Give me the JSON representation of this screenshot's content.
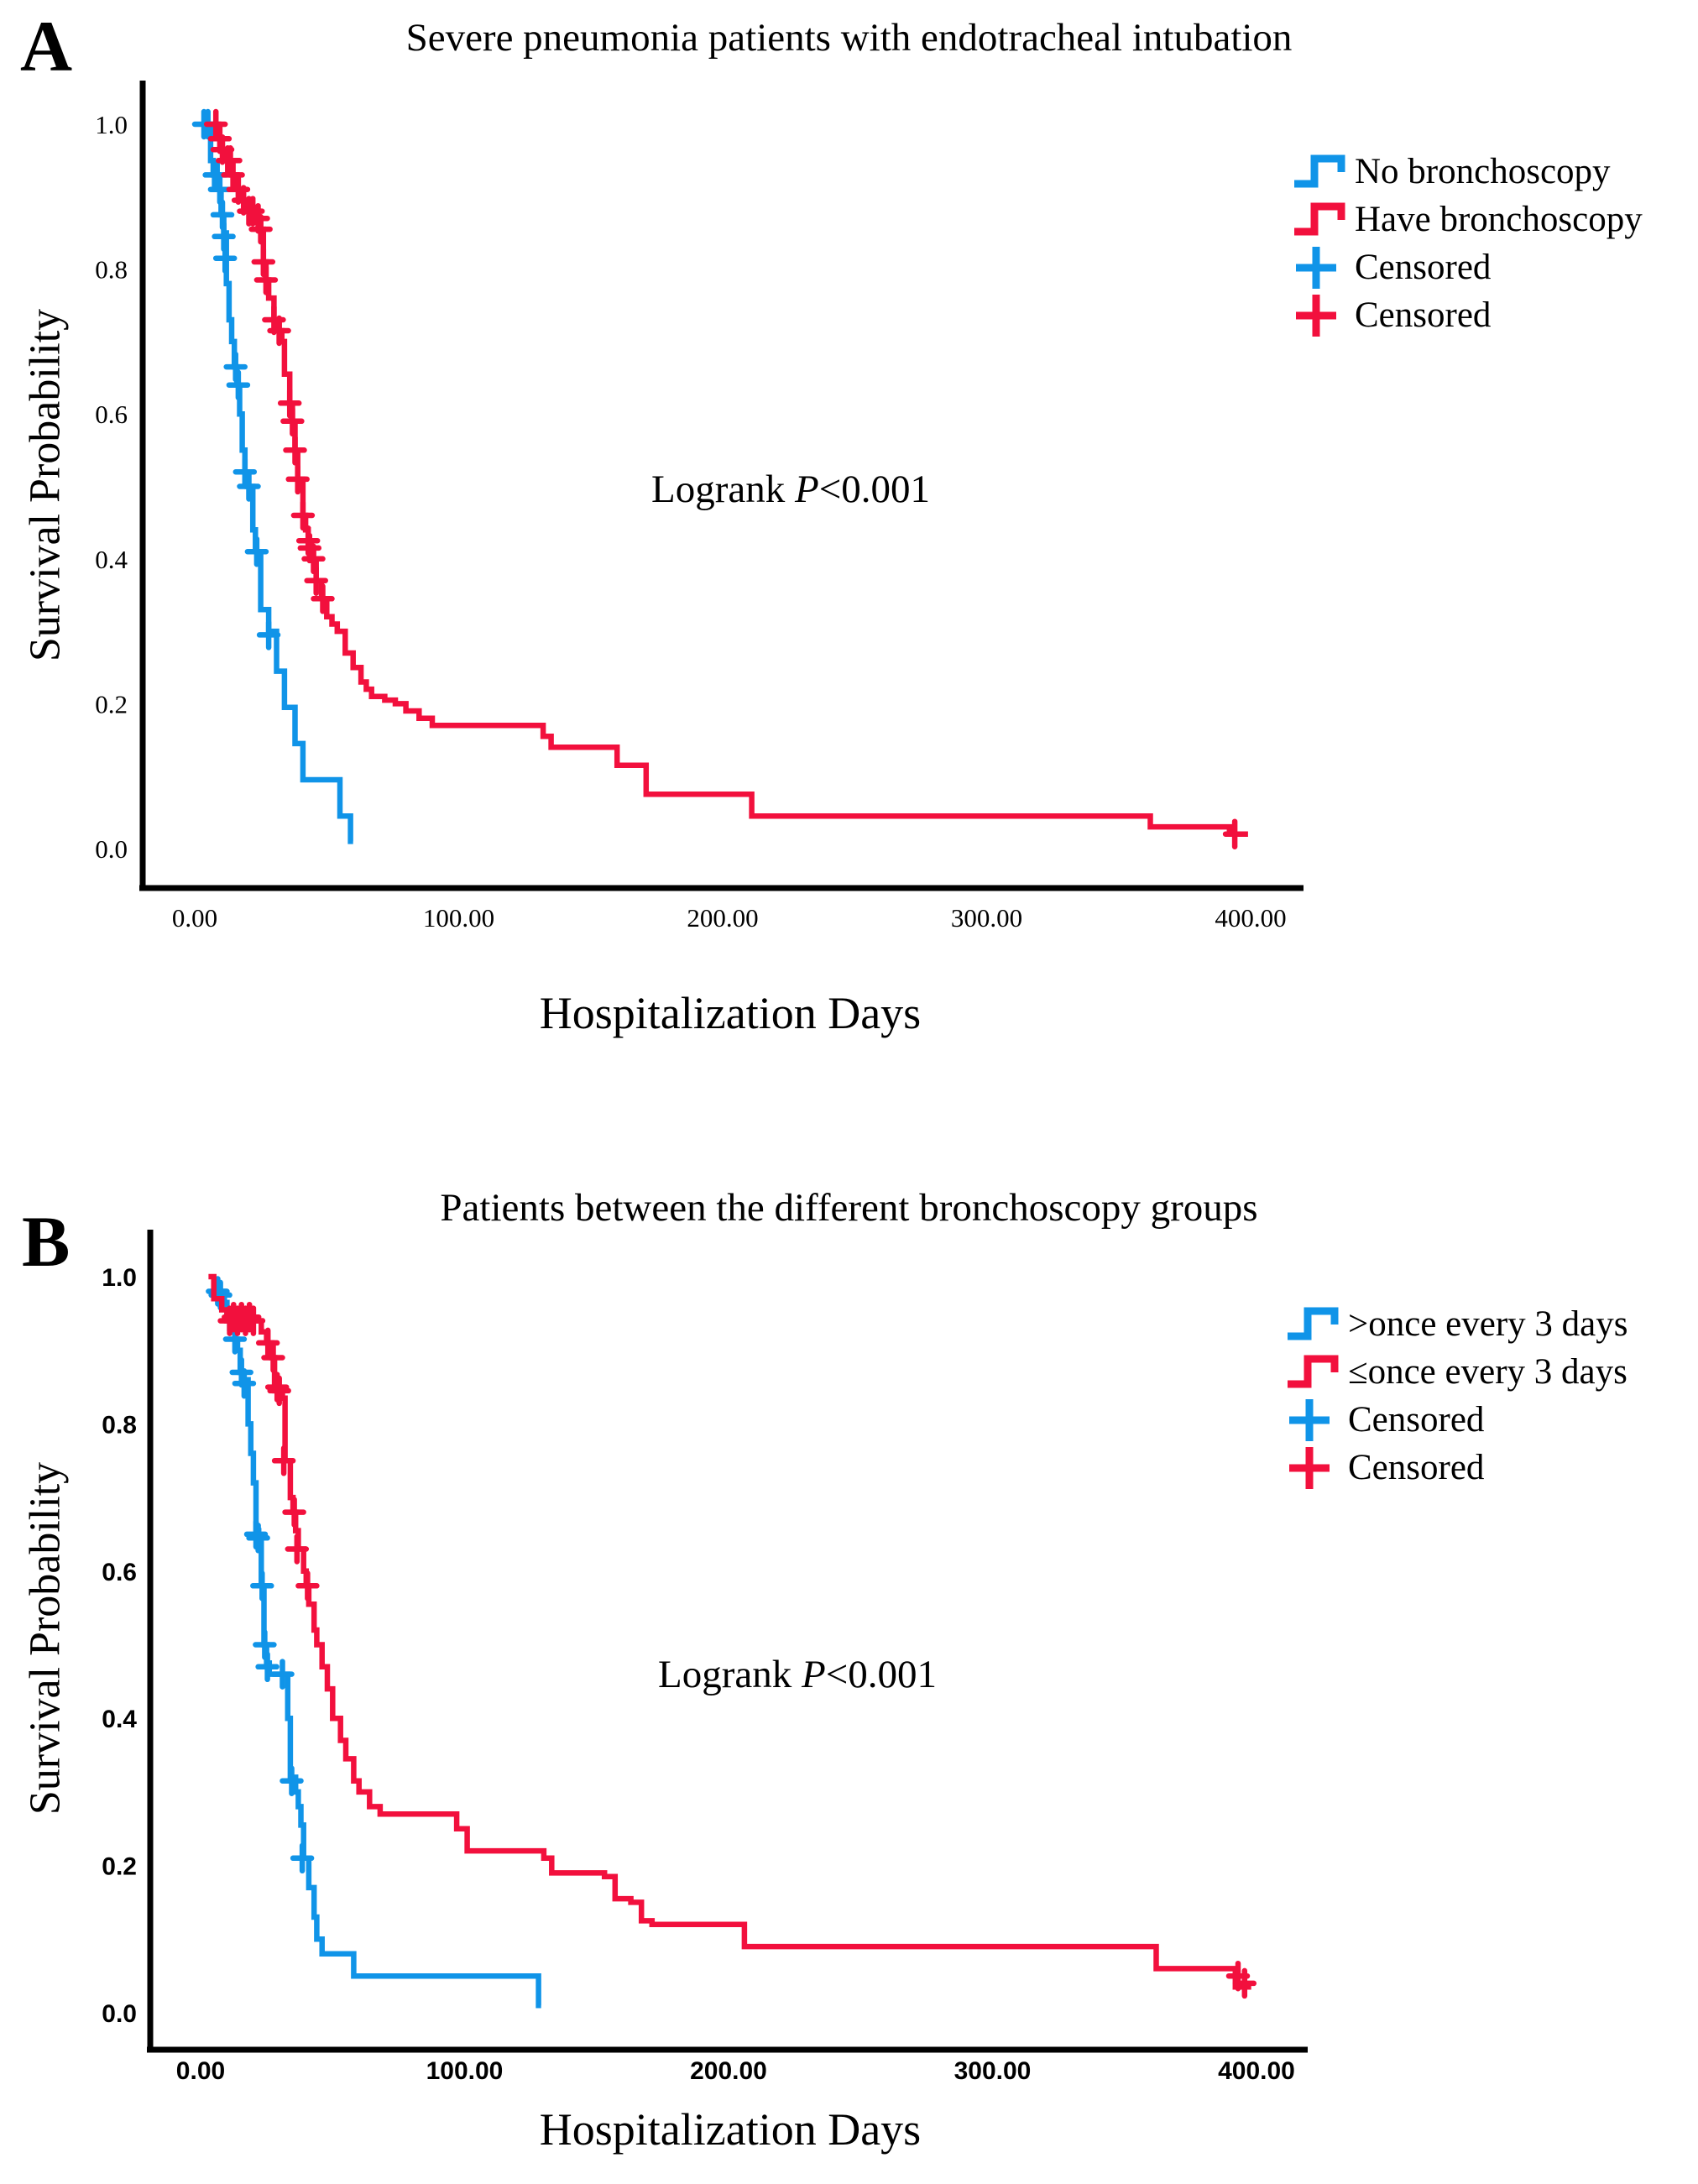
{
  "figure": {
    "panel_a": {
      "label": "A",
      "title": "Severe pneumonia patients with endotracheal intubation",
      "y_label": "Survival Probability",
      "x_label": "Hospitalization Days",
      "logrank_prefix": "Logrank ",
      "logrank_p": "P",
      "logrank_value": "<0.001",
      "x_ticks": [
        "0.00",
        "100.00",
        "200.00",
        "300.00",
        "400.00"
      ],
      "y_ticks": [
        "1.0",
        "0.8",
        "0.6",
        "0.4",
        "0.2",
        "0.0"
      ],
      "legend": [
        {
          "label": "No bronchoscopy",
          "symbol": "step",
          "color": "#1094e8"
        },
        {
          "label": "Have bronchoscopy",
          "symbol": "step",
          "color": "#f2103d"
        },
        {
          "label": "Censored",
          "symbol": "plus",
          "color": "#1094e8"
        },
        {
          "label": "Censored",
          "symbol": "plus",
          "color": "#f2103d"
        }
      ]
    },
    "panel_b": {
      "label": "B",
      "title": "Patients between the different bronchoscopy groups",
      "y_label": "Survival Probability",
      "x_label": "Hospitalization Days",
      "logrank_prefix": "Logrank ",
      "logrank_p": "P",
      "logrank_value": "<0.001",
      "x_ticks": [
        "0.00",
        "100.00",
        "200.00",
        "300.00",
        "400.00"
      ],
      "y_ticks": [
        "1.0",
        "0.8",
        "0.6",
        "0.4",
        "0.2",
        "0.0"
      ],
      "legend": [
        {
          "label": ">once every 3 days",
          "symbol": "step",
          "color": "#1094e8"
        },
        {
          "label": "≤once every 3 days",
          "symbol": "step",
          "color": "#f2103d"
        },
        {
          "label": "Censored",
          "symbol": "plus",
          "color": "#1094e8"
        },
        {
          "label": "Censored",
          "symbol": "plus",
          "color": "#f2103d"
        }
      ]
    }
  },
  "chart_data": [
    {
      "type": "line",
      "subtype": "kaplan_meier_step",
      "title": "Severe pneumonia patients with endotracheal intubation",
      "xlabel": "Hospitalization Days",
      "ylabel": "Survival Probability",
      "annotation": "Logrank P<0.001",
      "xlim": [
        0,
        420
      ],
      "ylim": [
        0.0,
        1.05
      ],
      "x_ticks": [
        0,
        100,
        200,
        300,
        400
      ],
      "y_ticks": [
        1.0,
        0.8,
        0.6,
        0.4,
        0.2,
        0.0
      ],
      "grid": false,
      "legend_position": "upper right",
      "series": [
        {
          "name": "No bronchoscopy",
          "color": "#1094e8",
          "steps": [
            [
              3,
              1.0
            ],
            [
              6,
              0.95
            ],
            [
              7,
              0.93
            ],
            [
              9,
              0.91
            ],
            [
              10,
              0.875
            ],
            [
              11,
              0.85
            ],
            [
              12,
              0.78
            ],
            [
              13,
              0.73
            ],
            [
              14,
              0.7
            ],
            [
              15,
              0.665
            ],
            [
              16,
              0.64
            ],
            [
              17,
              0.6
            ],
            [
              18,
              0.55
            ],
            [
              19,
              0.52
            ],
            [
              20,
              0.5
            ],
            [
              22,
              0.44
            ],
            [
              23,
              0.41
            ],
            [
              25,
              0.33
            ],
            [
              28,
              0.3
            ],
            [
              31,
              0.245
            ],
            [
              34,
              0.195
            ],
            [
              38,
              0.145
            ],
            [
              41,
              0.095
            ],
            [
              55,
              0.045
            ],
            [
              59,
              0.01
            ],
            [
              60,
              0.01
            ]
          ],
          "censors": [
            [
              3.5,
              1.0
            ],
            [
              5,
              1.0
            ],
            [
              7.5,
              0.93
            ],
            [
              8.5,
              0.93
            ],
            [
              9.5,
              0.91
            ],
            [
              10.5,
              0.875
            ],
            [
              11,
              0.845
            ],
            [
              11.5,
              0.815
            ],
            [
              15.5,
              0.665
            ],
            [
              16.5,
              0.64
            ],
            [
              19,
              0.52
            ],
            [
              20.5,
              0.5
            ],
            [
              23.5,
              0.41
            ],
            [
              28,
              0.295
            ]
          ]
        },
        {
          "name": "Have bronchoscopy",
          "color": "#f2103d",
          "steps": [
            [
              7,
              1.0
            ],
            [
              9,
              0.98
            ],
            [
              10,
              0.965
            ],
            [
              12,
              0.95
            ],
            [
              14,
              0.93
            ],
            [
              16,
              0.91
            ],
            [
              18,
              0.895
            ],
            [
              20,
              0.88
            ],
            [
              24,
              0.87
            ],
            [
              25,
              0.855
            ],
            [
              26,
              0.81
            ],
            [
              27,
              0.785
            ],
            [
              28,
              0.76
            ],
            [
              30,
              0.73
            ],
            [
              32,
              0.715
            ],
            [
              33,
              0.7
            ],
            [
              34,
              0.655
            ],
            [
              36,
              0.615
            ],
            [
              37,
              0.59
            ],
            [
              38,
              0.55
            ],
            [
              39,
              0.51
            ],
            [
              41,
              0.46
            ],
            [
              42,
              0.44
            ],
            [
              43,
              0.42
            ],
            [
              44,
              0.41
            ],
            [
              45,
              0.4
            ],
            [
              46,
              0.37
            ],
            [
              48,
              0.345
            ],
            [
              50,
              0.32
            ],
            [
              52,
              0.31
            ],
            [
              54,
              0.3
            ],
            [
              57,
              0.27
            ],
            [
              60,
              0.25
            ],
            [
              63,
              0.23
            ],
            [
              65,
              0.22
            ],
            [
              67,
              0.21
            ],
            [
              72,
              0.205
            ],
            [
              76,
              0.2
            ],
            [
              80,
              0.19
            ],
            [
              85,
              0.18
            ],
            [
              90,
              0.17
            ],
            [
              132,
              0.155
            ],
            [
              135,
              0.14
            ],
            [
              160,
              0.115
            ],
            [
              171,
              0.075
            ],
            [
              211,
              0.045
            ],
            [
              362,
              0.03
            ],
            [
              392,
              0.02
            ],
            [
              399,
              0.02
            ]
          ],
          "censors": [
            [
              8,
              1.0
            ],
            [
              9.5,
              0.98
            ],
            [
              10.5,
              0.965
            ],
            [
              12.5,
              0.95
            ],
            [
              13.5,
              0.95
            ],
            [
              14.5,
              0.93
            ],
            [
              16.5,
              0.91
            ],
            [
              18.5,
              0.895
            ],
            [
              20.5,
              0.88
            ],
            [
              22,
              0.88
            ],
            [
              24,
              0.87
            ],
            [
              25,
              0.855
            ],
            [
              26,
              0.81
            ],
            [
              27,
              0.785
            ],
            [
              30,
              0.73
            ],
            [
              32,
              0.715
            ],
            [
              36,
              0.615
            ],
            [
              37,
              0.59
            ],
            [
              38,
              0.55
            ],
            [
              39,
              0.51
            ],
            [
              41,
              0.46
            ],
            [
              43,
              0.425
            ],
            [
              43.5,
              0.415
            ],
            [
              45,
              0.4
            ],
            [
              46,
              0.37
            ],
            [
              48.5,
              0.345
            ],
            [
              394,
              0.02
            ]
          ]
        }
      ]
    },
    {
      "type": "line",
      "subtype": "kaplan_meier_step",
      "title": "Patients between the different bronchoscopy groups",
      "xlabel": "Hospitalization Days",
      "ylabel": "Survival Probability",
      "annotation": "Logrank P<0.001",
      "xlim": [
        0,
        420
      ],
      "ylim": [
        0.0,
        1.05
      ],
      "x_ticks": [
        0,
        100,
        200,
        300,
        400
      ],
      "y_ticks": [
        1.0,
        0.8,
        0.6,
        0.4,
        0.2,
        0.0
      ],
      "grid": false,
      "legend_position": "upper right",
      "series": [
        {
          "name": ">once every 3 days",
          "color": "#1094e8",
          "steps": [
            [
              6,
              0.98
            ],
            [
              9,
              0.965
            ],
            [
              10,
              0.95
            ],
            [
              11,
              0.93
            ],
            [
              13,
              0.915
            ],
            [
              14,
              0.9
            ],
            [
              15,
              0.87
            ],
            [
              16,
              0.86
            ],
            [
              18,
              0.8
            ],
            [
              19,
              0.76
            ],
            [
              20,
              0.72
            ],
            [
              21,
              0.655
            ],
            [
              22,
              0.64
            ],
            [
              23,
              0.58
            ],
            [
              24,
              0.5
            ],
            [
              25,
              0.475
            ],
            [
              26,
              0.46
            ],
            [
              33,
              0.4
            ],
            [
              34,
              0.32
            ],
            [
              36,
              0.3
            ],
            [
              37,
              0.28
            ],
            [
              38,
              0.255
            ],
            [
              39,
              0.21
            ],
            [
              41,
              0.17
            ],
            [
              43,
              0.13
            ],
            [
              44,
              0.1
            ],
            [
              46,
              0.08
            ],
            [
              58,
              0.05
            ],
            [
              128,
              0.01
            ],
            [
              129,
              0.01
            ]
          ],
          "censors": [
            [
              6.5,
              0.98
            ],
            [
              7.5,
              0.975
            ],
            [
              13,
              0.915
            ],
            [
              15.5,
              0.87
            ],
            [
              16.5,
              0.855
            ],
            [
              21,
              0.65
            ],
            [
              21.8,
              0.645
            ],
            [
              23.3,
              0.58
            ],
            [
              24.3,
              0.5
            ],
            [
              25.3,
              0.47
            ],
            [
              31,
              0.46
            ],
            [
              34.5,
              0.315
            ],
            [
              38.5,
              0.21
            ]
          ]
        },
        {
          "name": "≤once every 3 days",
          "color": "#f2103d",
          "steps": [
            [
              3,
              1.0
            ],
            [
              5,
              0.97
            ],
            [
              8,
              0.955
            ],
            [
              10,
              0.94
            ],
            [
              23,
              0.925
            ],
            [
              25,
              0.91
            ],
            [
              27,
              0.89
            ],
            [
              28,
              0.845
            ],
            [
              31,
              0.835
            ],
            [
              32,
              0.75
            ],
            [
              34,
              0.7
            ],
            [
              35,
              0.68
            ],
            [
              36,
              0.655
            ],
            [
              37,
              0.63
            ],
            [
              39,
              0.6
            ],
            [
              40,
              0.58
            ],
            [
              41,
              0.555
            ],
            [
              43,
              0.52
            ],
            [
              44,
              0.5
            ],
            [
              46,
              0.47
            ],
            [
              48,
              0.44
            ],
            [
              50,
              0.4
            ],
            [
              53,
              0.37
            ],
            [
              55,
              0.345
            ],
            [
              58,
              0.315
            ],
            [
              60,
              0.3
            ],
            [
              64,
              0.28
            ],
            [
              68,
              0.27
            ],
            [
              97,
              0.25
            ],
            [
              101,
              0.22
            ],
            [
              130,
              0.21
            ],
            [
              133,
              0.19
            ],
            [
              153,
              0.185
            ],
            [
              157,
              0.155
            ],
            [
              163,
              0.15
            ],
            [
              167,
              0.125
            ],
            [
              171,
              0.12
            ],
            [
              206,
              0.09
            ],
            [
              362,
              0.06
            ],
            [
              392,
              0.035
            ],
            [
              398,
              0.035
            ]
          ],
          "censors": [
            [
              11,
              0.94
            ],
            [
              12.5,
              0.945
            ],
            [
              14,
              0.94
            ],
            [
              15.5,
              0.945
            ],
            [
              17,
              0.94
            ],
            [
              18.5,
              0.945
            ],
            [
              20,
              0.94
            ],
            [
              25.5,
              0.91
            ],
            [
              27.5,
              0.89
            ],
            [
              29,
              0.85
            ],
            [
              29.8,
              0.845
            ],
            [
              31.5,
              0.75
            ],
            [
              35.5,
              0.68
            ],
            [
              36.5,
              0.63
            ],
            [
              40.5,
              0.58
            ],
            [
              393,
              0.05
            ],
            [
              395.5,
              0.04
            ]
          ]
        }
      ]
    }
  ]
}
